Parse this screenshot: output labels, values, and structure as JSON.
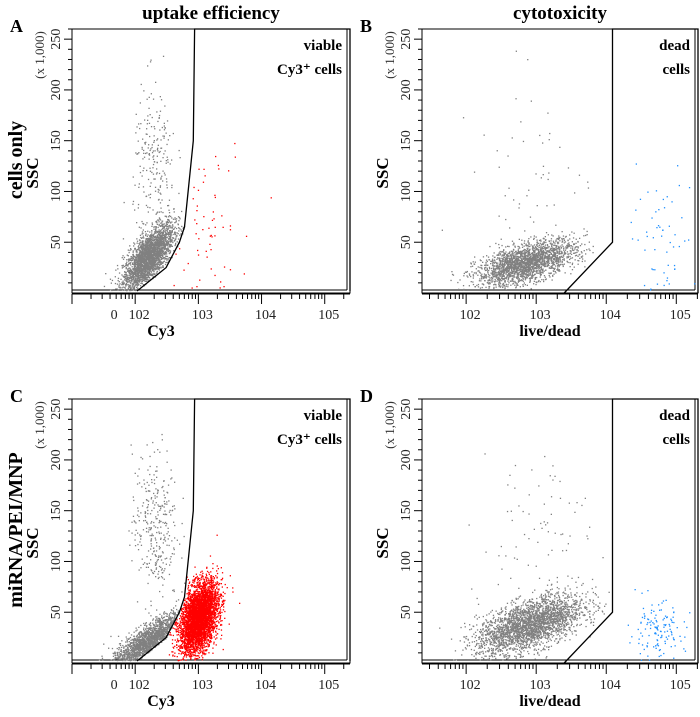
{
  "columns": {
    "left_title": "uptake efficiency",
    "right_title": "cytotoxicity"
  },
  "rows": {
    "top_label": "cells only",
    "bottom_label": "miRNA/PEI/MNP"
  },
  "colors": {
    "gray_events": "#808080",
    "cy3_positive": "#ff0000",
    "dead": "#1e8fff",
    "gate": "#000000"
  },
  "chart_data": [
    {
      "panel": "A",
      "type": "scatter",
      "xlabel": "Cy3",
      "ylabel": "SSC",
      "y_unit": "(x 1,000)",
      "x_scale": "log",
      "xlim_log10": [
        1.0,
        5.4
      ],
      "ylim": [
        0,
        260
      ],
      "x_ticks": [
        {
          "label": "0",
          "pos": 1.73
        },
        {
          "label": "102",
          "pos": 2
        },
        {
          "label": "103",
          "pos": 3
        },
        {
          "label": "104",
          "pos": 4
        },
        {
          "label": "105",
          "pos": 5
        }
      ],
      "y_ticks": [
        50,
        100,
        150,
        200,
        250
      ],
      "gate": {
        "label_line1": "viable",
        "label_line2": "Cy3⁺ cells",
        "vertices": [
          [
            2.03,
            2
          ],
          [
            2.49,
            25
          ],
          [
            2.7,
            50
          ],
          [
            2.78,
            65
          ],
          [
            2.92,
            150
          ],
          [
            2.94,
            260
          ],
          [
            5.4,
            260
          ],
          [
            5.4,
            2
          ]
        ]
      },
      "series": [
        {
          "color": "gray",
          "center": [
            2.2,
            35
          ],
          "spread": [
            0.2,
            12
          ],
          "slope": 60,
          "count": 2600
        },
        {
          "color": "gray",
          "center": [
            2.3,
            125
          ],
          "spread": [
            0.17,
            40
          ],
          "slope": 0,
          "count": 220
        },
        {
          "color": "red",
          "center": [
            3.1,
            70
          ],
          "spread": [
            0.35,
            40
          ],
          "slope": 0,
          "count": 60,
          "in_gate": true
        }
      ]
    },
    {
      "panel": "B",
      "type": "scatter",
      "xlabel": "live/dead",
      "ylabel": "SSC",
      "y_unit": "(x 1,000)",
      "x_scale": "log",
      "xlim_log10": [
        1.37,
        5.31
      ],
      "ylim": [
        0,
        260
      ],
      "x_ticks": [
        {
          "label": "102",
          "pos": 2
        },
        {
          "label": "103",
          "pos": 3
        },
        {
          "label": "104",
          "pos": 4
        },
        {
          "label": "105",
          "pos": 5
        }
      ],
      "y_ticks": [
        50,
        100,
        150,
        200,
        250
      ],
      "gate": {
        "label_line1": "dead",
        "label_line2": "cells",
        "vertices": [
          [
            3.4,
            0
          ],
          [
            4.09,
            50
          ],
          [
            4.09,
            260
          ],
          [
            5.31,
            260
          ],
          [
            5.31,
            0
          ]
        ]
      },
      "series": [
        {
          "color": "gray",
          "center": [
            2.85,
            30
          ],
          "spread": [
            0.35,
            9
          ],
          "slope": 18,
          "count": 2200
        },
        {
          "color": "gray",
          "center": [
            2.9,
            110
          ],
          "spread": [
            0.4,
            50
          ],
          "slope": 0,
          "count": 60
        },
        {
          "color": "blue",
          "center": [
            4.7,
            45
          ],
          "spread": [
            0.25,
            35
          ],
          "slope": 0,
          "count": 55,
          "in_gate": true
        }
      ]
    },
    {
      "panel": "C",
      "type": "scatter",
      "xlabel": "Cy3",
      "ylabel": "SSC",
      "y_unit": "(x 1,000)",
      "x_scale": "log",
      "xlim_log10": [
        1.0,
        5.4
      ],
      "ylim": [
        0,
        260
      ],
      "x_ticks": [
        {
          "label": "0",
          "pos": 1.73
        },
        {
          "label": "102",
          "pos": 2
        },
        {
          "label": "103",
          "pos": 3
        },
        {
          "label": "104",
          "pos": 4
        },
        {
          "label": "105",
          "pos": 5
        }
      ],
      "y_ticks": [
        50,
        100,
        150,
        200,
        250
      ],
      "gate": {
        "label_line1": "viable",
        "label_line2": "Cy3⁺ cells",
        "vertices": [
          [
            2.03,
            2
          ],
          [
            2.49,
            25
          ],
          [
            2.7,
            50
          ],
          [
            2.78,
            65
          ],
          [
            2.92,
            150
          ],
          [
            2.94,
            260
          ],
          [
            5.4,
            260
          ],
          [
            5.4,
            2
          ]
        ]
      },
      "series": [
        {
          "color": "gray",
          "center": [
            2.2,
            22
          ],
          "spread": [
            0.3,
            8
          ],
          "slope": 40,
          "count": 1500
        },
        {
          "color": "gray",
          "center": [
            2.3,
            135
          ],
          "spread": [
            0.18,
            38
          ],
          "slope": 0,
          "count": 320
        },
        {
          "color": "red",
          "center": [
            3.0,
            45
          ],
          "spread": [
            0.15,
            16
          ],
          "slope": 45,
          "count": 4000,
          "in_gate": true
        }
      ]
    },
    {
      "panel": "D",
      "type": "scatter",
      "xlabel": "live/dead",
      "ylabel": "SSC",
      "y_unit": "(x 1,000)",
      "x_scale": "log",
      "xlim_log10": [
        1.37,
        5.31
      ],
      "ylim": [
        0,
        260
      ],
      "x_ticks": [
        {
          "label": "102",
          "pos": 2
        },
        {
          "label": "103",
          "pos": 3
        },
        {
          "label": "104",
          "pos": 4
        },
        {
          "label": "105",
          "pos": 5
        }
      ],
      "y_ticks": [
        50,
        100,
        150,
        200,
        250
      ],
      "gate": {
        "label_line1": "dead",
        "label_line2": "cells",
        "vertices": [
          [
            3.4,
            0
          ],
          [
            4.09,
            50
          ],
          [
            4.09,
            260
          ],
          [
            5.31,
            260
          ],
          [
            5.31,
            0
          ]
        ]
      },
      "series": [
        {
          "color": "gray",
          "center": [
            2.9,
            38
          ],
          "spread": [
            0.38,
            12
          ],
          "slope": 22,
          "count": 2600
        },
        {
          "color": "gray",
          "center": [
            3.0,
            120
          ],
          "spread": [
            0.4,
            55
          ],
          "slope": 0,
          "count": 90
        },
        {
          "color": "blue",
          "center": [
            4.7,
            30
          ],
          "spread": [
            0.2,
            15
          ],
          "slope": 0,
          "count": 130,
          "in_gate": true
        }
      ]
    }
  ]
}
